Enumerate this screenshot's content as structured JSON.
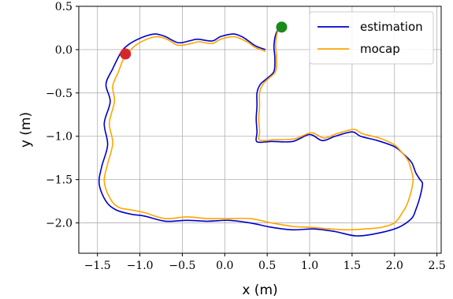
{
  "chart_data": {
    "type": "line",
    "title": "",
    "xlabel": "x (m)",
    "ylabel": "y (m)",
    "xlim": [
      -1.72,
      2.55
    ],
    "ylim": [
      -2.35,
      0.5
    ],
    "xticks": [
      -1.5,
      -1.0,
      -0.5,
      0.0,
      0.5,
      1.0,
      1.5,
      2.0,
      2.5
    ],
    "yticks": [
      0.5,
      0.0,
      -0.5,
      -1.0,
      -1.5,
      -2.0
    ],
    "xtick_labels": [
      "−1.5",
      "−1.0",
      "−0.5",
      "0.0",
      "0.5",
      "1.0",
      "1.5",
      "2.0",
      "2.5"
    ],
    "ytick_labels": [
      "0.5",
      "0.0",
      "−0.5",
      "−1.0",
      "−1.5",
      "−2.0"
    ],
    "grid": true,
    "legend": "top-right",
    "series": [
      {
        "name": "estimation",
        "color": "#0000cc",
        "x": [
          0.68,
          0.61,
          0.58,
          0.59,
          0.58,
          0.5,
          0.42,
          0.38,
          0.38,
          0.37,
          0.38,
          0.37,
          0.42,
          0.55,
          0.8,
          1.0,
          1.15,
          1.3,
          1.5,
          1.6,
          1.8,
          2.0,
          2.1,
          2.2,
          2.25,
          2.3,
          2.33,
          2.3,
          2.25,
          2.2,
          2.05,
          1.8,
          1.55,
          1.3,
          1.05,
          0.8,
          0.55,
          0.3,
          0.05,
          -0.2,
          -0.45,
          -0.7,
          -0.95,
          -1.1,
          -1.28,
          -1.4,
          -1.48,
          -1.45,
          -1.38,
          -1.42,
          -1.35,
          -1.4,
          -1.32,
          -1.25,
          -1.2,
          -1.1,
          -0.95,
          -0.82,
          -0.7,
          -0.55,
          -0.42,
          -0.32,
          -0.15,
          -0.05,
          0.1,
          0.2,
          0.28,
          0.35,
          0.42,
          0.48
        ],
        "y": [
          0.27,
          0.2,
          0.05,
          -0.1,
          -0.25,
          -0.33,
          -0.4,
          -0.5,
          -0.65,
          -0.8,
          -0.95,
          -1.05,
          -1.07,
          -1.06,
          -1.06,
          -0.98,
          -1.05,
          -1.0,
          -0.95,
          -1.0,
          -1.05,
          -1.12,
          -1.2,
          -1.3,
          -1.42,
          -1.5,
          -1.55,
          -1.7,
          -1.85,
          -1.95,
          -2.05,
          -2.12,
          -2.15,
          -2.1,
          -2.07,
          -2.08,
          -2.05,
          -2.0,
          -1.97,
          -1.98,
          -1.97,
          -1.98,
          -1.92,
          -1.9,
          -1.85,
          -1.75,
          -1.55,
          -1.35,
          -1.1,
          -0.85,
          -0.6,
          -0.4,
          -0.22,
          -0.08,
          0.0,
          0.08,
          0.15,
          0.18,
          0.15,
          0.08,
          0.1,
          0.12,
          0.1,
          0.15,
          0.18,
          0.15,
          0.1,
          0.05,
          0.02,
          0.0
        ]
      },
      {
        "name": "mocap",
        "color": "#ffa500",
        "x": [
          0.68,
          0.62,
          0.6,
          0.61,
          0.6,
          0.52,
          0.45,
          0.41,
          0.41,
          0.4,
          0.41,
          0.4,
          0.45,
          0.58,
          0.82,
          1.02,
          1.17,
          1.32,
          1.52,
          1.62,
          1.82,
          2.0,
          2.08,
          2.16,
          2.2,
          2.22,
          2.2,
          2.15,
          2.08,
          2.0,
          1.85,
          1.65,
          1.45,
          1.25,
          1.0,
          0.8,
          0.55,
          0.3,
          0.05,
          -0.2,
          -0.45,
          -0.7,
          -0.95,
          -1.1,
          -1.25,
          -1.35,
          -1.42,
          -1.38,
          -1.32,
          -1.36,
          -1.3,
          -1.32,
          -1.25,
          -1.2,
          -1.15,
          -1.05,
          -0.92,
          -0.8,
          -0.68,
          -0.55,
          -0.4,
          -0.3,
          -0.15,
          -0.05,
          0.1,
          0.2,
          0.28,
          0.35,
          0.42,
          0.48
        ],
        "y": [
          0.27,
          0.2,
          0.05,
          -0.1,
          -0.25,
          -0.33,
          -0.4,
          -0.5,
          -0.65,
          -0.8,
          -0.95,
          -1.03,
          -1.05,
          -1.04,
          -1.03,
          -0.96,
          -1.02,
          -0.97,
          -0.92,
          -0.97,
          -1.02,
          -1.1,
          -1.18,
          -1.28,
          -1.4,
          -1.5,
          -1.62,
          -1.78,
          -1.9,
          -2.0,
          -2.05,
          -2.07,
          -2.08,
          -2.07,
          -2.05,
          -2.04,
          -2.0,
          -1.95,
          -1.95,
          -1.95,
          -1.93,
          -1.95,
          -1.88,
          -1.85,
          -1.82,
          -1.72,
          -1.52,
          -1.32,
          -1.08,
          -0.85,
          -0.6,
          -0.42,
          -0.25,
          -0.12,
          -0.05,
          0.05,
          0.12,
          0.15,
          0.12,
          0.05,
          0.07,
          0.09,
          0.07,
          0.12,
          0.15,
          0.12,
          0.08,
          0.03,
          0.0,
          -0.02
        ]
      }
    ],
    "markers": [
      {
        "x": 0.67,
        "y": 0.26,
        "color": "#1a8a1a"
      },
      {
        "x": -1.17,
        "y": -0.05,
        "color": "#d62728"
      }
    ]
  }
}
